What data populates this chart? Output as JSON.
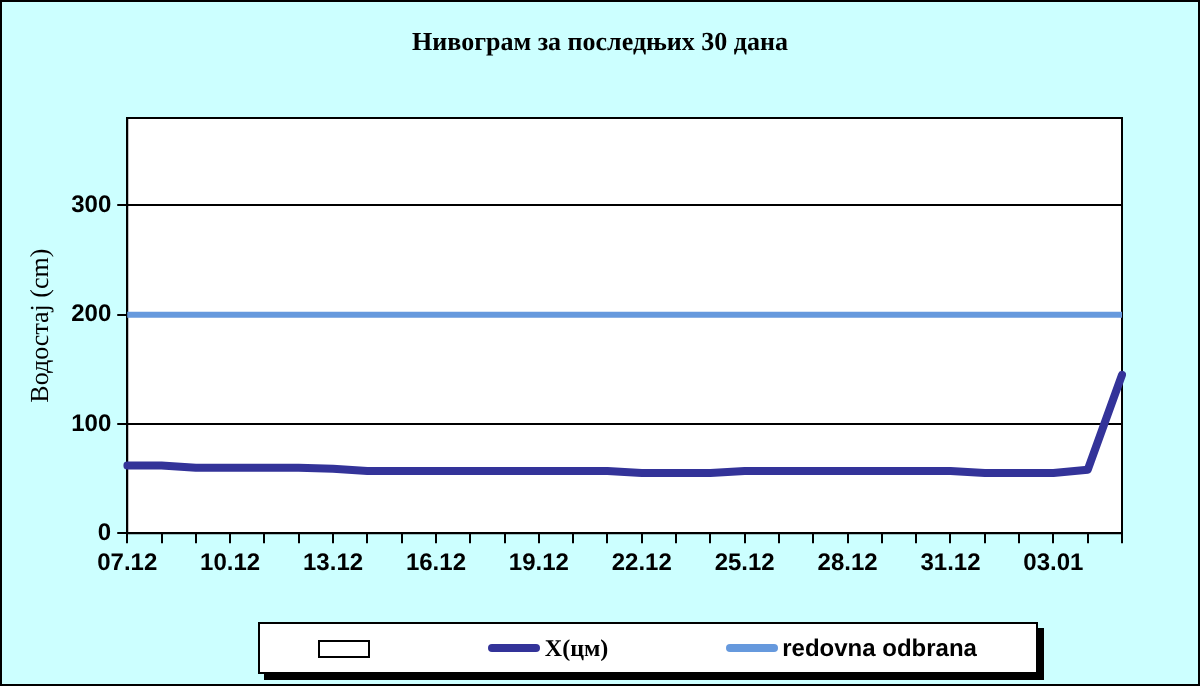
{
  "chart_data": {
    "type": "line",
    "title": "Нивограм за последњих 30 дана",
    "ylabel": "Водостај (cm)",
    "categories": [
      "07.12",
      null,
      null,
      "10.12",
      null,
      null,
      "13.12",
      null,
      null,
      "16.12",
      null,
      null,
      "19.12",
      null,
      null,
      "22.12",
      null,
      null,
      "25.12",
      null,
      null,
      "28.12",
      null,
      null,
      "31.12",
      null,
      null,
      "03.01",
      null,
      null
    ],
    "series": [
      {
        "name": "X(цм)",
        "color": "#333399",
        "values": [
          62,
          62,
          60,
          60,
          60,
          60,
          59,
          57,
          57,
          57,
          57,
          57,
          57,
          57,
          57,
          55,
          55,
          55,
          57,
          57,
          57,
          57,
          57,
          57,
          57,
          55,
          55,
          55,
          58,
          145
        ]
      }
    ],
    "ref_lines": [
      {
        "axis": "y",
        "value": 200,
        "label": "redovna odbrana",
        "color": "#6699dd"
      }
    ],
    "ylim": [
      0,
      380
    ],
    "yticks": [
      0,
      100,
      200,
      300
    ],
    "grid": "y",
    "legend": "bottom",
    "marker": "none",
    "line_style": "solid"
  }
}
